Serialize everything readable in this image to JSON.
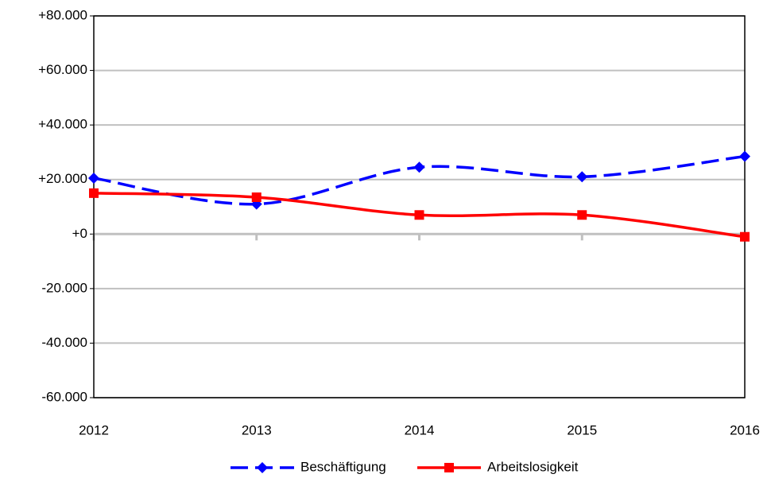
{
  "chart_data": {
    "type": "line",
    "x": [
      2012,
      2013,
      2014,
      2015,
      2016
    ],
    "xlim": [
      2012,
      2016
    ],
    "xticks": [
      2012,
      2013,
      2014,
      2015,
      2016
    ],
    "ylim": [
      -60000,
      80000
    ],
    "yticks": [
      {
        "value": -60000,
        "label": "-60.000"
      },
      {
        "value": -40000,
        "label": "-40.000"
      },
      {
        "value": -20000,
        "label": "-20.000"
      },
      {
        "value": 0,
        "label": "+0"
      },
      {
        "value": 20000,
        "label": "+20.000"
      },
      {
        "value": 40000,
        "label": "+40.000"
      },
      {
        "value": 60000,
        "label": "+60.000"
      },
      {
        "value": 80000,
        "label": "+80.000"
      }
    ],
    "grid": true,
    "legend": "bottom",
    "series": [
      {
        "name": "Beschäftigung",
        "color": "#0000ff",
        "dashed": true,
        "marker": "diamond",
        "values": [
          20500,
          11000,
          24500,
          21000,
          28500
        ]
      },
      {
        "name": "Arbeitslosigkeit",
        "color": "#ff0000",
        "dashed": false,
        "marker": "square",
        "values": [
          15000,
          13500,
          7000,
          7000,
          -1000
        ]
      }
    ]
  }
}
